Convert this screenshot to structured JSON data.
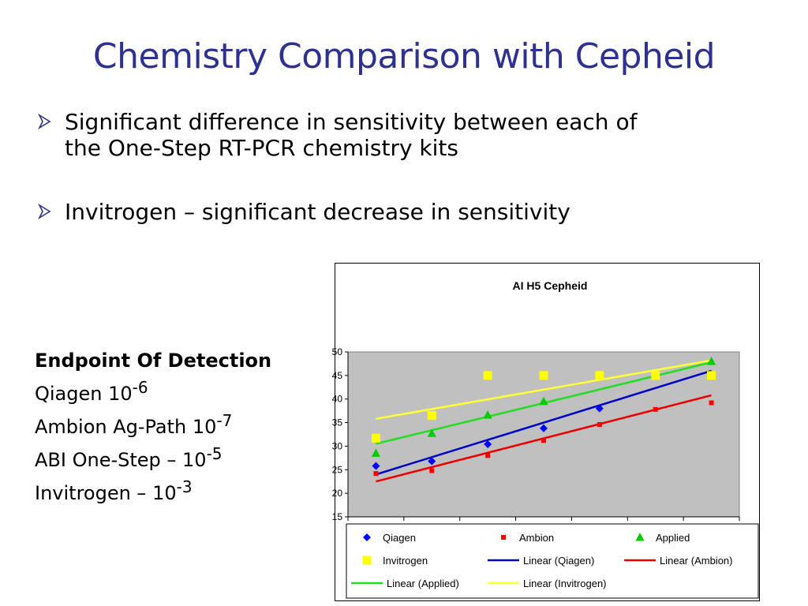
{
  "slide": {
    "title": "Chemistry Comparison with Cepheid",
    "bullets": [
      {
        "lines": [
          "Significant difference in sensitivity between each of",
          "the One-Step RT-PCR chemistry kits"
        ]
      },
      {
        "lines": [
          "Invitrogen – significant decrease in sensitivity"
        ]
      }
    ],
    "endpoint": {
      "header": "Endpoint Of Detection",
      "items": [
        {
          "label": "Qiagen 10",
          "exp": "-6"
        },
        {
          "label": "Ambion Ag-Path 10",
          "exp": "-7"
        },
        {
          "label": "ABI One-Step – 10",
          "exp": "-5"
        },
        {
          "label": "Invitrogen – 10",
          "exp": "-3"
        }
      ]
    }
  },
  "colors": {
    "title": "#2E3192",
    "plot_bg": "#C0C0C0",
    "qiagen": "#0000FF",
    "ambion": "#FF0000",
    "applied": "#00CC00",
    "invitrogen": "#FFFF00",
    "linear_qiagen": "#0000CC",
    "linear_ambion": "#EE0000",
    "linear_applied": "#22DD22",
    "linear_invitrogen": "#FFFF33"
  },
  "chart_data": {
    "type": "scatter",
    "title": "AI H5 Cepheid",
    "ylim": [
      15,
      50
    ],
    "yticks": [
      15,
      20,
      25,
      30,
      35,
      40,
      45,
      50
    ],
    "x": [
      1,
      2,
      3,
      4,
      5,
      6,
      7
    ],
    "xlim": [
      0.5,
      7.5
    ],
    "grid": false,
    "legend_position": "bottom",
    "series": [
      {
        "name": "Qiagen",
        "marker": "diamond",
        "colorKey": "qiagen",
        "values": [
          25.8,
          26.8,
          30.4,
          33.8,
          38.0,
          null,
          null
        ]
      },
      {
        "name": "Ambion",
        "marker": "square-small",
        "colorKey": "ambion",
        "values": [
          24.2,
          24.8,
          28.0,
          31.2,
          34.6,
          37.8,
          39.2
        ]
      },
      {
        "name": "Applied",
        "marker": "triangle",
        "colorKey": "applied",
        "values": [
          28.5,
          32.7,
          36.6,
          39.5,
          null,
          null,
          48.0
        ]
      },
      {
        "name": "Invitrogen",
        "marker": "square",
        "colorKey": "invitrogen",
        "values": [
          31.7,
          36.5,
          45.0,
          45.0,
          45.0,
          45.0,
          45.0
        ]
      }
    ],
    "trendlines": [
      {
        "name": "Linear (Qiagen)",
        "colorKey": "linear_qiagen",
        "y_start": 24.0,
        "y_end": 46.0
      },
      {
        "name": "Linear (Ambion)",
        "colorKey": "linear_ambion",
        "y_start": 22.5,
        "y_end": 40.8
      },
      {
        "name": "Linear (Applied)",
        "colorKey": "linear_applied",
        "y_start": 30.5,
        "y_end": 47.8
      },
      {
        "name": "Linear (Invitrogen)",
        "colorKey": "linear_invitrogen",
        "y_start": 35.8,
        "y_end": 48.2
      }
    ],
    "legend": [
      "Qiagen",
      "Ambion",
      "Applied",
      "Invitrogen",
      "Linear (Qiagen)",
      "Linear (Ambion)",
      "Linear (Applied)",
      "Linear (Invitrogen)"
    ]
  }
}
